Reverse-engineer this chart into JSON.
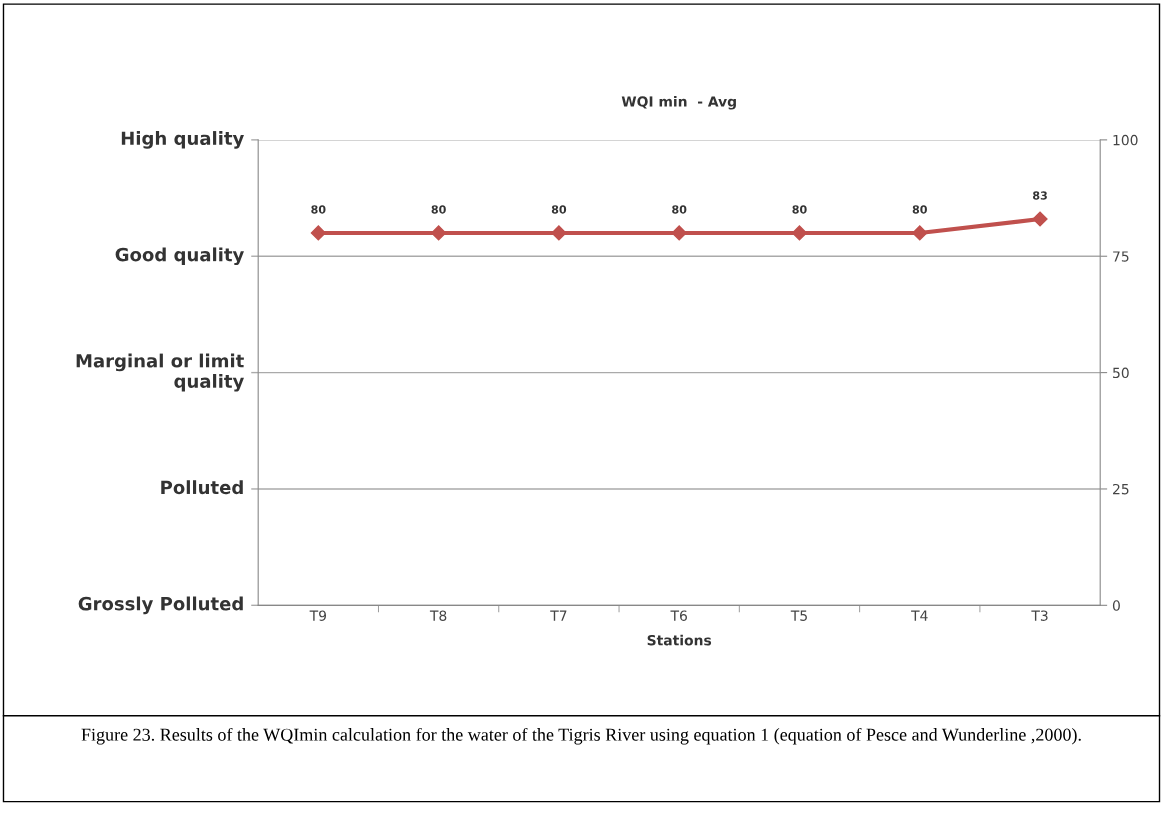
{
  "chart_data": {
    "type": "line",
    "title": "WQI min  - Avg",
    "xlabel": "Stations",
    "categories": [
      "T9",
      "T8",
      "T7",
      "T6",
      "T5",
      "T4",
      "T3"
    ],
    "series": [
      {
        "color": "#c0504d",
        "values": [
          80,
          80,
          80,
          80,
          80,
          80,
          83
        ]
      }
    ],
    "ylim": [
      0,
      100
    ],
    "yticks": [
      0,
      25,
      50,
      75,
      100
    ],
    "ref_lines": [
      {
        "axis": "y",
        "value": 0,
        "label": "Grossly Polluted",
        "color": "#aaaaaa"
      },
      {
        "axis": "y",
        "value": 25,
        "label": "Polluted",
        "color": "#aaaaaa"
      },
      {
        "axis": "y",
        "value": 50,
        "label": "Marginal or limit\nquality",
        "color": "#aaaaaa"
      },
      {
        "axis": "y",
        "value": 75,
        "label": "Good quality",
        "color": "#aaaaaa"
      },
      {
        "axis": "y",
        "value": 100,
        "label": "High quality",
        "color": "#aaaaaa"
      }
    ],
    "marker": "diamond",
    "line_style": "solid",
    "data_labels": true,
    "annotations": [
      "Figure 23. Results of the WQImin calculation for the water of the Tigris River using equation 1 (equation of Pesce and Wunderline ,2000)."
    ]
  }
}
